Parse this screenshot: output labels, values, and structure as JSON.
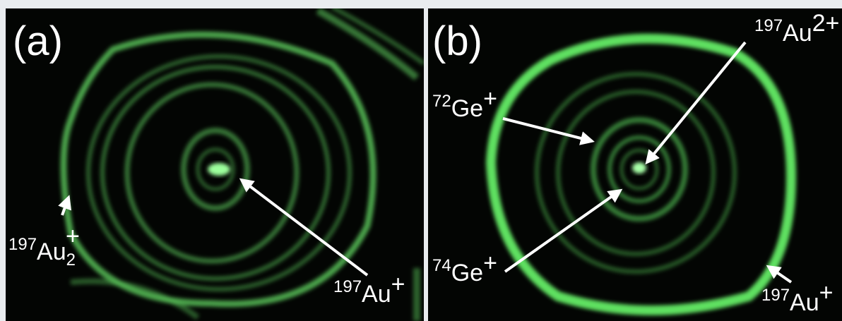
{
  "panels": [
    {
      "label": "(a)",
      "annotations": [
        {
          "mass": "197",
          "element": "Au",
          "subscript": "2",
          "charge": "+"
        },
        {
          "mass": "197",
          "element": "Au",
          "charge": "+"
        }
      ]
    },
    {
      "label": "(b)",
      "annotations": [
        {
          "mass": "197",
          "element": "Au",
          "charge": "2+"
        },
        {
          "mass": "72",
          "element": "Ge",
          "charge": "+"
        },
        {
          "mass": "74",
          "element": "Ge",
          "charge": "+"
        },
        {
          "mass": "197",
          "element": "Au",
          "charge": "+"
        }
      ]
    }
  ]
}
